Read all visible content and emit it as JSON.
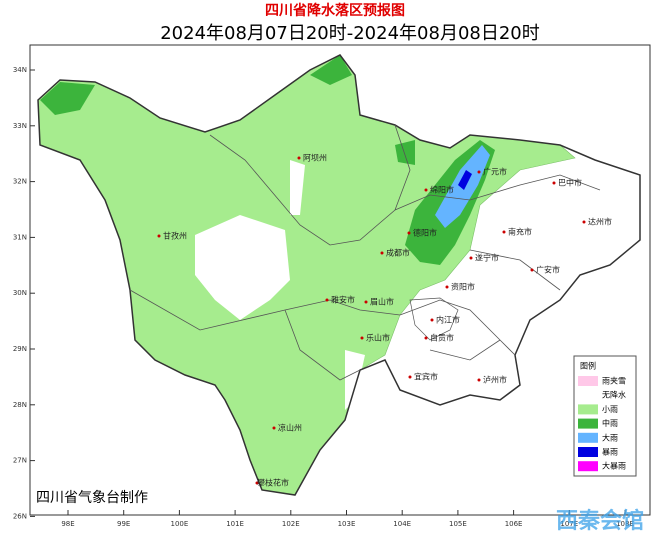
{
  "header": {
    "title": "四川省降水落区预报图",
    "subtitle": "2024年08月07日20时-2024年08月08日20时"
  },
  "axes": {
    "lat_labels": [
      "34N",
      "33N",
      "32N",
      "31N",
      "30N",
      "29N",
      "28N",
      "27N",
      "26N"
    ],
    "lon_labels": [
      "98E",
      "99E",
      "100E",
      "101E",
      "102E",
      "103E",
      "104E",
      "105E",
      "106E",
      "107E",
      "108E"
    ]
  },
  "places": [
    {
      "label": "阿坝州"
    },
    {
      "label": "甘孜州"
    },
    {
      "label": "绵阳市"
    },
    {
      "label": "广元市"
    },
    {
      "label": "巴中市"
    },
    {
      "label": "达州市"
    },
    {
      "label": "南充市"
    },
    {
      "label": "德阳市"
    },
    {
      "label": "成都市"
    },
    {
      "label": "遂宁市"
    },
    {
      "label": "广安市"
    },
    {
      "label": "雅安市"
    },
    {
      "label": "眉山市"
    },
    {
      "label": "资阳市"
    },
    {
      "label": "乐山市"
    },
    {
      "label": "内江市"
    },
    {
      "label": "自贡市"
    },
    {
      "label": "宜宾市"
    },
    {
      "label": "泸州市"
    },
    {
      "label": "凉山州"
    },
    {
      "label": "攀枝花市"
    }
  ],
  "legend": {
    "title": "图例",
    "items": [
      {
        "label": "雨夹雪",
        "color": "#ffc8e8"
      },
      {
        "label": "无降水",
        "color": "#ffffff"
      },
      {
        "label": "小雨",
        "color": "#a6ec8e"
      },
      {
        "label": "中雨",
        "color": "#3cb43c"
      },
      {
        "label": "大雨",
        "color": "#64b4ff"
      },
      {
        "label": "暴雨",
        "color": "#0000e0"
      },
      {
        "label": "大暴雨",
        "color": "#ff00ff"
      }
    ]
  },
  "footer": "四川省气象台制作",
  "watermark": "西秦会馆"
}
